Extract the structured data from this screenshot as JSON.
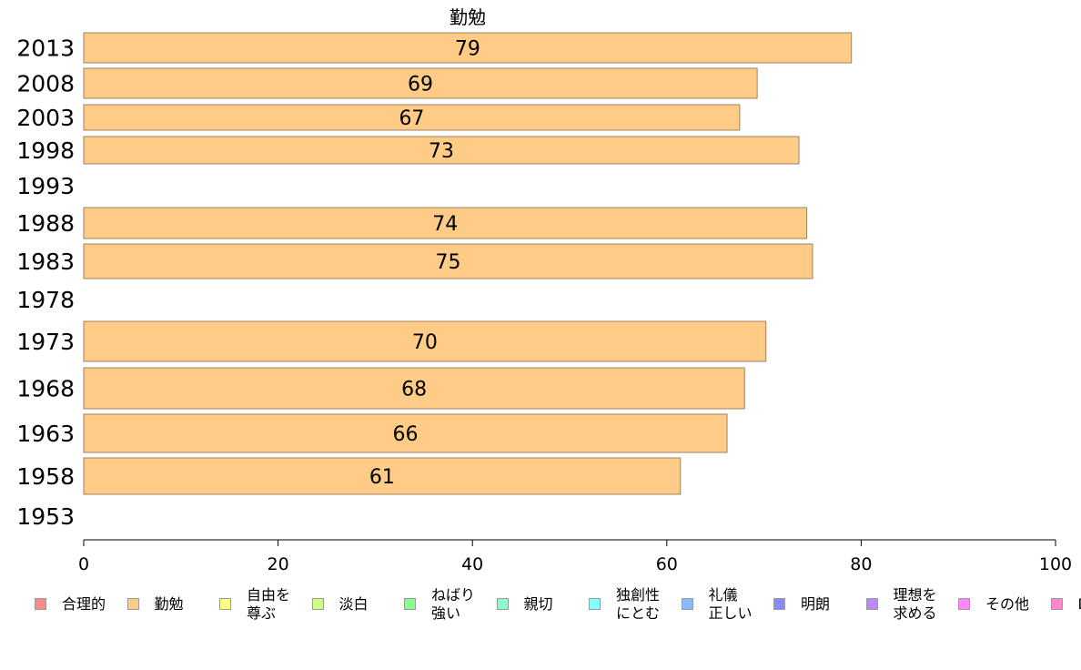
{
  "chart_data": {
    "type": "bar",
    "orientation": "horizontal",
    "title": "勤勉",
    "categories": [
      "2013",
      "2008",
      "2003",
      "1998",
      "1993",
      "1988",
      "1983",
      "1978",
      "1973",
      "1968",
      "1963",
      "1958",
      "1953"
    ],
    "values": [
      79,
      69,
      67,
      73,
      null,
      74,
      75,
      null,
      70,
      68,
      66,
      61,
      null
    ],
    "value_precise": [
      79,
      69.3,
      67.5,
      73.6,
      null,
      74.4,
      75,
      null,
      70.2,
      68,
      66.2,
      61.4,
      null
    ],
    "xlim": [
      0,
      100
    ],
    "xticks": [
      0,
      20,
      40,
      60,
      80,
      100
    ],
    "bar_color": "#ffcc88",
    "bar_stroke": "#a08060",
    "grid": false,
    "legend_position": "bottom",
    "legend": [
      {
        "label": "合理的",
        "color": "#ff8888"
      },
      {
        "label": "勤勉",
        "color": "#ffcc88"
      },
      {
        "label": "自由を\n尊ぶ",
        "color": "#ffff88"
      },
      {
        "label": "淡白",
        "color": "#ccff88"
      },
      {
        "label": "ねばり\n強い",
        "color": "#88ff88"
      },
      {
        "label": "親切",
        "color": "#88ffcc"
      },
      {
        "label": "独創性\nにとむ",
        "color": "#88ffff"
      },
      {
        "label": "礼儀\n正しい",
        "color": "#88bbff"
      },
      {
        "label": "明朗",
        "color": "#8888ff"
      },
      {
        "label": "理想を\n求める",
        "color": "#bb88ff"
      },
      {
        "label": "その他",
        "color": "#ff88ff"
      },
      {
        "label": "D",
        "color": "#ff88cc"
      }
    ]
  }
}
